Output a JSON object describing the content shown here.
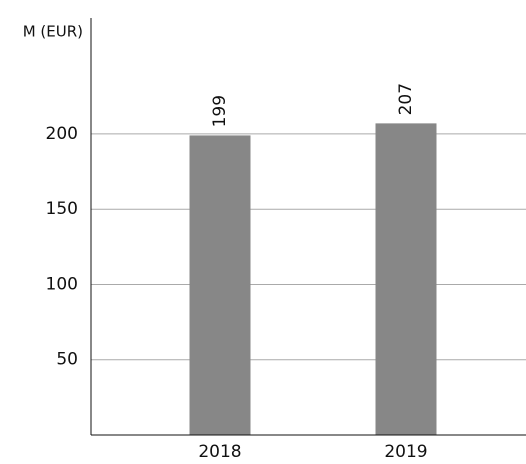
{
  "chart_data": {
    "type": "bar",
    "y_label": "M (EUR)",
    "categories": [
      "2018",
      "2019"
    ],
    "values": [
      199,
      207
    ],
    "color": "#878787",
    "ylim": [
      0,
      277
    ],
    "yticks": [
      50,
      100,
      150,
      200
    ],
    "grid": true
  }
}
